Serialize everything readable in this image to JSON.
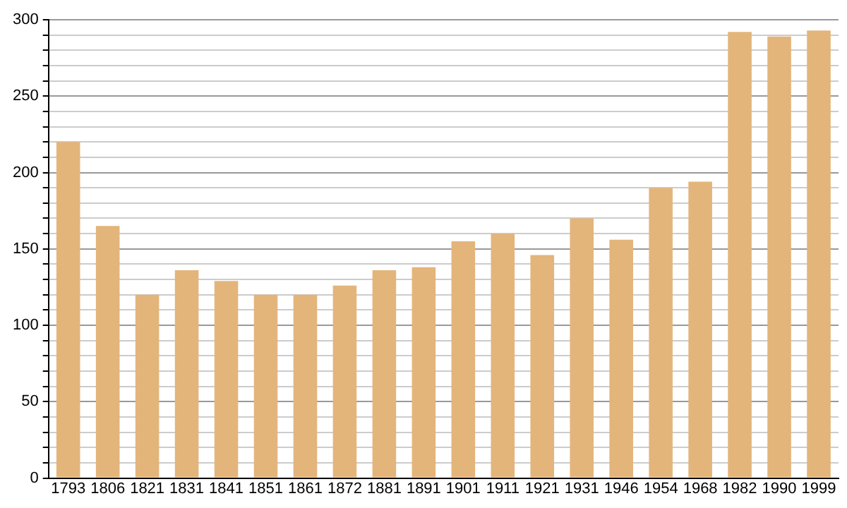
{
  "chart_data": {
    "type": "bar",
    "categories": [
      "1793",
      "1806",
      "1821",
      "1831",
      "1841",
      "1851",
      "1861",
      "1872",
      "1881",
      "1891",
      "1901",
      "1911",
      "1921",
      "1931",
      "1946",
      "1954",
      "1968",
      "1982",
      "1990",
      "1999"
    ],
    "values": [
      220,
      165,
      120,
      136,
      129,
      120,
      120,
      126,
      136,
      138,
      155,
      160,
      146,
      170,
      156,
      190,
      194,
      292,
      289,
      293
    ],
    "color": "#e3b57b",
    "ylim": [
      0,
      300
    ],
    "yticks": [
      0,
      {
        "value": 10,
        "label": null
      },
      {
        "value": 20,
        "label": null
      },
      {
        "value": 30,
        "label": null
      },
      {
        "value": 40,
        "label": null
      },
      50,
      {
        "value": 60,
        "label": null
      },
      {
        "value": 70,
        "label": null
      },
      {
        "value": 80,
        "label": null
      },
      {
        "value": 90,
        "label": null
      },
      100,
      {
        "value": 110,
        "label": null
      },
      {
        "value": 120,
        "label": null
      },
      {
        "value": 130,
        "label": null
      },
      {
        "value": 140,
        "label": null
      },
      150,
      {
        "value": 160,
        "label": null
      },
      {
        "value": 170,
        "label": null
      },
      {
        "value": 180,
        "label": null
      },
      {
        "value": 190,
        "label": null
      },
      200,
      {
        "value": 210,
        "label": null
      },
      {
        "value": 220,
        "label": null
      },
      {
        "value": 230,
        "label": null
      },
      {
        "value": 240,
        "label": null
      },
      250,
      {
        "value": 260,
        "label": null
      },
      {
        "value": 270,
        "label": null
      },
      {
        "value": 280,
        "label": null
      },
      {
        "value": 290,
        "label": null
      },
      300
    ],
    "grid": "y"
  }
}
